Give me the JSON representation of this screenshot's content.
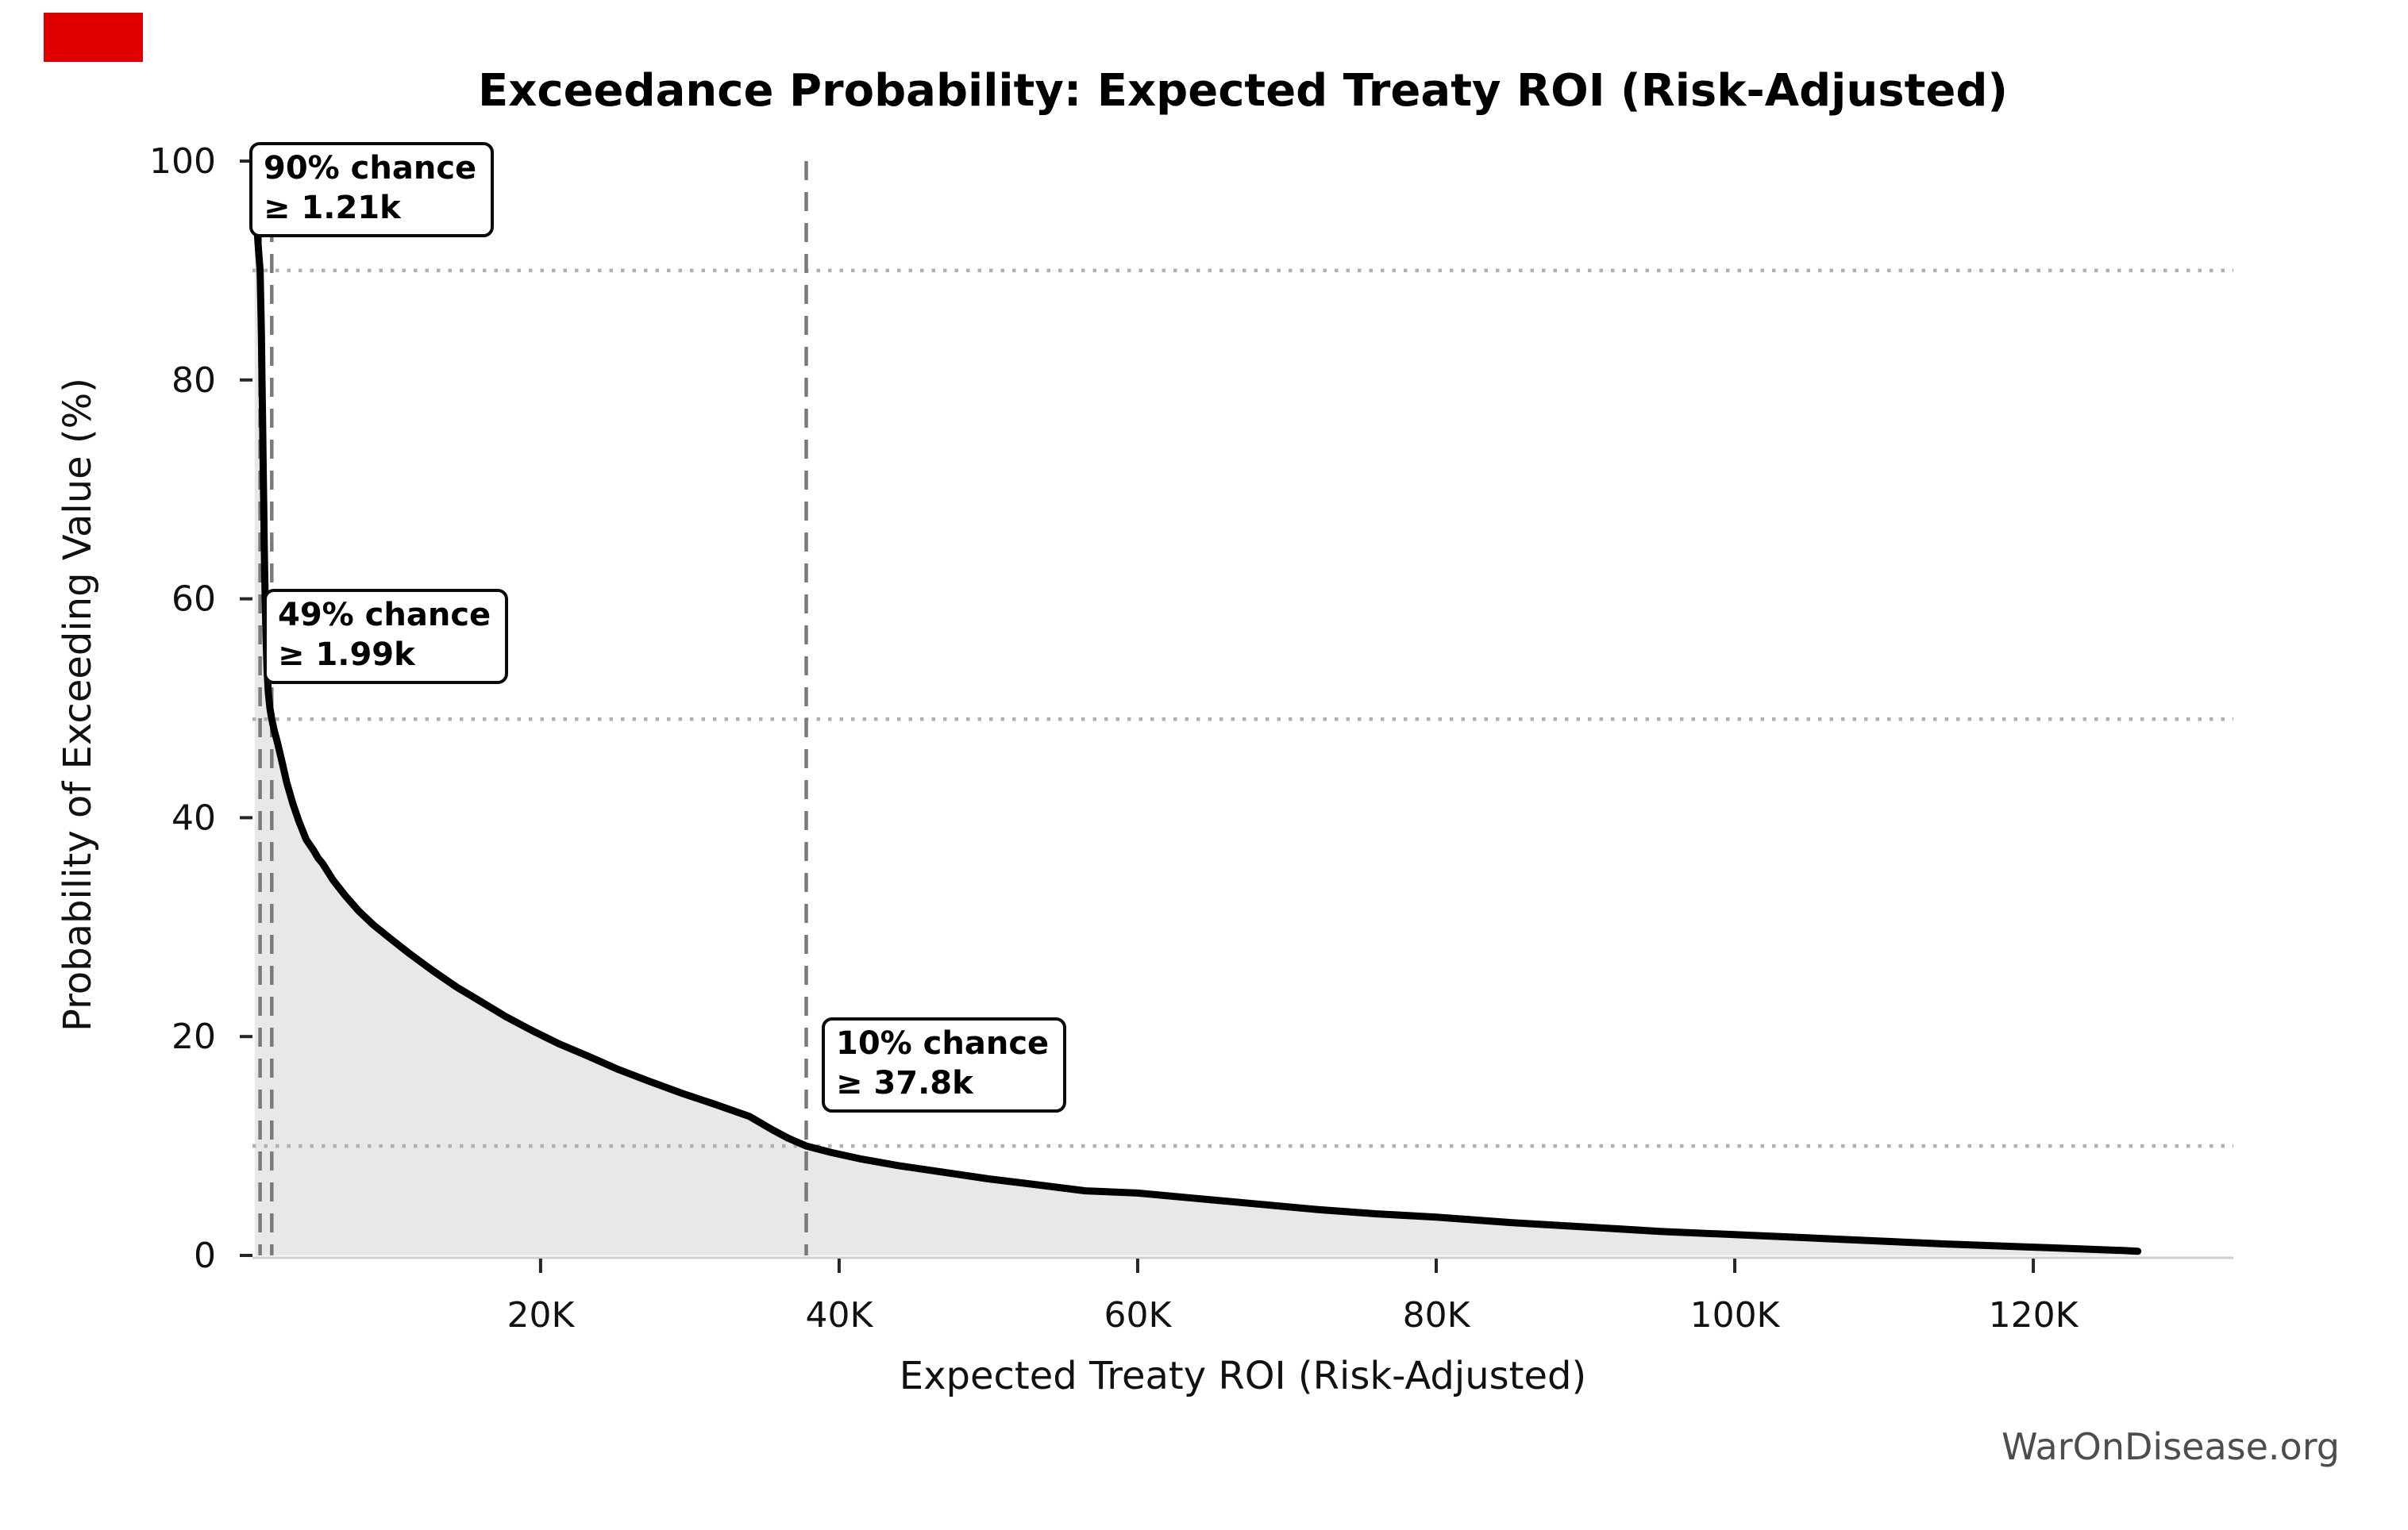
{
  "title": "Exceedance Probability: Expected Treaty ROI (Risk-Adjusted)",
  "watermark": "WarOnDisease.org",
  "corner_marker": {
    "color": "#e00000"
  },
  "chart_data": {
    "type": "line",
    "title": "Exceedance Probability: Expected Treaty ROI (Risk-Adjusted)",
    "xlabel": "Expected Treaty ROI (Risk-Adjusted)",
    "ylabel": "Probability of Exceeding Value (%)",
    "legend": "none",
    "grid": "none (dotted threshold guide lines only)",
    "x_axis": {
      "units": "thousands",
      "range_k": [
        0.7,
        133.4
      ],
      "ticks": [
        {
          "v": 20,
          "label": "20K"
        },
        {
          "v": 40,
          "label": "40K"
        },
        {
          "v": 60,
          "label": "60K"
        },
        {
          "v": 80,
          "label": "80K"
        },
        {
          "v": 100,
          "label": "100K"
        },
        {
          "v": 120,
          "label": "120K"
        }
      ]
    },
    "y_axis": {
      "units": "percent",
      "range_pct": [
        0,
        100
      ],
      "ticks": [
        {
          "v": 0,
          "label": "0"
        },
        {
          "v": 20,
          "label": "20"
        },
        {
          "v": 40,
          "label": "40"
        },
        {
          "v": 60,
          "label": "60"
        },
        {
          "v": 80,
          "label": "80"
        },
        {
          "v": 100,
          "label": "100"
        }
      ]
    },
    "annotations": [
      {
        "pct": 90,
        "roi_k": 1.21,
        "line1": "90% chance",
        "line2": "≥ 1.21k"
      },
      {
        "pct": 49,
        "roi_k": 1.99,
        "line1": "49% chance",
        "line2": "≥ 1.99k"
      },
      {
        "pct": 10,
        "roi_k": 37.8,
        "line1": "10% chance",
        "line2": "≥ 37.8k"
      }
    ],
    "series": [
      {
        "name": "Exceedance probability curve",
        "points_roi_k_pct": [
          [
            0.85,
            100
          ],
          [
            0.9,
            98
          ],
          [
            0.95,
            96
          ],
          [
            1.0,
            94
          ],
          [
            1.1,
            92
          ],
          [
            1.21,
            90
          ],
          [
            1.26,
            87
          ],
          [
            1.3,
            84
          ],
          [
            1.34,
            80
          ],
          [
            1.38,
            76
          ],
          [
            1.42,
            72
          ],
          [
            1.46,
            68
          ],
          [
            1.5,
            64
          ],
          [
            1.55,
            60
          ],
          [
            1.61,
            56.5
          ],
          [
            1.68,
            53.5
          ],
          [
            1.76,
            51.5
          ],
          [
            1.87,
            50
          ],
          [
            1.99,
            49
          ],
          [
            2.15,
            48
          ],
          [
            2.35,
            47
          ],
          [
            2.66,
            45.2
          ],
          [
            3.0,
            43.2
          ],
          [
            3.4,
            41.3
          ],
          [
            3.8,
            39.7
          ],
          [
            4.3,
            38
          ],
          [
            4.8,
            37
          ],
          [
            5.1,
            36.3
          ],
          [
            5.4,
            35.8
          ],
          [
            6.1,
            34.3
          ],
          [
            6.9,
            32.9
          ],
          [
            7.8,
            31.5
          ],
          [
            8.8,
            30.2
          ],
          [
            9.9,
            29.0
          ],
          [
            11.2,
            27.6
          ],
          [
            12.8,
            26.0
          ],
          [
            14.4,
            24.5
          ],
          [
            16,
            23.2
          ],
          [
            17.7,
            21.8
          ],
          [
            19.5,
            20.5
          ],
          [
            21.3,
            19.3
          ],
          [
            23.2,
            18.2
          ],
          [
            25.2,
            17.0
          ],
          [
            27.3,
            15.9
          ],
          [
            29.5,
            14.8
          ],
          [
            31.7,
            13.8
          ],
          [
            34,
            12.7
          ],
          [
            35.5,
            11.5
          ],
          [
            36.6,
            10.7
          ],
          [
            37.8,
            10
          ],
          [
            39.5,
            9.4
          ],
          [
            41.5,
            8.8
          ],
          [
            44,
            8.2
          ],
          [
            47,
            7.6
          ],
          [
            50,
            7.0
          ],
          [
            53,
            6.5
          ],
          [
            56.5,
            5.9
          ],
          [
            60,
            5.7
          ],
          [
            64,
            5.2
          ],
          [
            68,
            4.7
          ],
          [
            72,
            4.2
          ],
          [
            76,
            3.8
          ],
          [
            80,
            3.5
          ],
          [
            85,
            3.0
          ],
          [
            90,
            2.6
          ],
          [
            95,
            2.2
          ],
          [
            100,
            1.9
          ],
          [
            105,
            1.6
          ],
          [
            110,
            1.3
          ],
          [
            114,
            1.05
          ],
          [
            118,
            0.85
          ],
          [
            121,
            0.7
          ],
          [
            124,
            0.55
          ],
          [
            126,
            0.45
          ],
          [
            127,
            0.38
          ]
        ]
      }
    ],
    "colors": {
      "curve": "#000000",
      "fill_under_curve": "#e8e8e8",
      "dotted_threshold_line": "#b0b0b0",
      "dashed_marker_line": "#7a7a7a",
      "axis_spine": "#cfcfcf",
      "tick_mark": "#262626",
      "annotation_border": "#0b0b0b",
      "annotation_bg": "#ffffff",
      "watermark_text": "#4d4d4d"
    }
  }
}
